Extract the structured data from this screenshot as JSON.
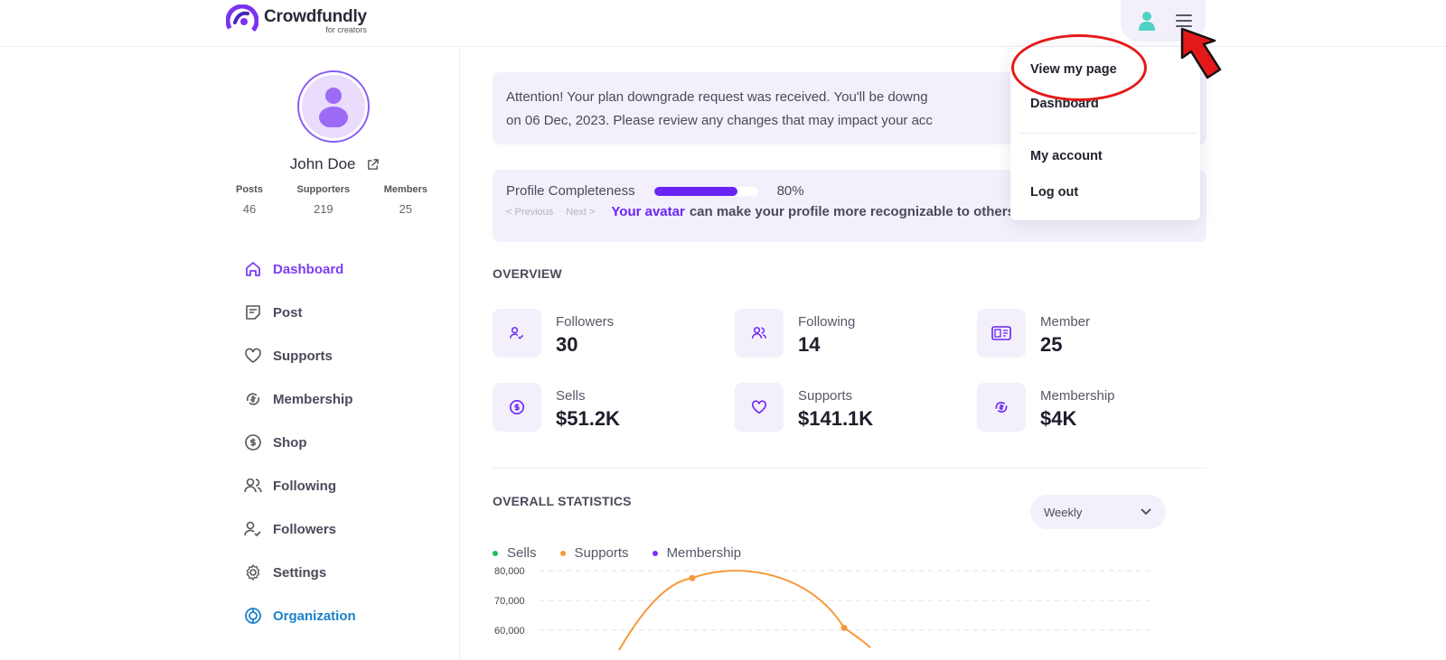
{
  "header": {
    "brand_name": "Crowdfundly",
    "brand_tagline": "for creators",
    "icons": [
      "logo-icon",
      "user-avatar-icon",
      "hamburger-menu-icon"
    ]
  },
  "user_menu": {
    "items": [
      {
        "label": "View my page"
      },
      {
        "label": "Dashboard"
      },
      {
        "label": "My account"
      },
      {
        "label": "Log out"
      }
    ]
  },
  "profile": {
    "name": "John Doe",
    "stats": [
      {
        "label": "Posts",
        "value": "46"
      },
      {
        "label": "Supporters",
        "value": "219"
      },
      {
        "label": "Members",
        "value": "25"
      }
    ]
  },
  "sidebar": {
    "items": [
      {
        "label": "Dashboard",
        "icon": "home-icon",
        "active": true
      },
      {
        "label": "Post",
        "icon": "post-icon"
      },
      {
        "label": "Supports",
        "icon": "heart-icon"
      },
      {
        "label": "Membership",
        "icon": "membership-icon"
      },
      {
        "label": "Shop",
        "icon": "dollar-icon"
      },
      {
        "label": "Following",
        "icon": "users-icon"
      },
      {
        "label": "Followers",
        "icon": "user-check-icon"
      },
      {
        "label": "Settings",
        "icon": "gear-icon"
      },
      {
        "label": "Organization",
        "icon": "organization-icon"
      }
    ]
  },
  "alert": {
    "line1": "Attention! Your plan downgrade request was received. You'll be downg",
    "line2": "on 06 Dec, 2023. Please review any changes that may impact your acc"
  },
  "completeness": {
    "label": "Profile Completeness",
    "percent": 80,
    "percent_text": "80%",
    "prev_label": "< Previous",
    "next_label": "Next >",
    "tip_link": "Your avatar",
    "tip_text": "can make your profile more recognizable to others"
  },
  "overview": {
    "title": "OVERVIEW",
    "cards": [
      {
        "label": "Followers",
        "value": "30",
        "icon": "user-check-icon"
      },
      {
        "label": "Following",
        "value": "14",
        "icon": "users-icon"
      },
      {
        "label": "Member",
        "value": "25",
        "icon": "member-card-icon"
      },
      {
        "label": "Sells",
        "value": "$51.2K",
        "icon": "dollar-icon"
      },
      {
        "label": "Supports",
        "value": "$141.1K",
        "icon": "heart-icon"
      },
      {
        "label": "Membership",
        "value": "$4K",
        "icon": "membership-icon"
      }
    ]
  },
  "statistics": {
    "title": "OVERALL STATISTICS",
    "period": "Weekly",
    "legend": [
      {
        "label": "Sells",
        "color": "#1fbf5a"
      },
      {
        "label": "Supports",
        "color": "#f59a3a"
      },
      {
        "label": "Membership",
        "color": "#7a32f0"
      }
    ]
  },
  "chart_data": {
    "type": "line",
    "y_ticks": [
      "80,000",
      "70,000",
      "60,000"
    ],
    "ylim": [
      55000,
      80000
    ],
    "grid": true,
    "series": [
      {
        "name": "Supports",
        "color": "#f59a3a",
        "visible_points": [
          77500,
          60800
        ]
      }
    ]
  },
  "colors": {
    "accent": "#6a24f6",
    "active_nav": "#7b3ff2",
    "organization": "#1b82c8",
    "panel_bg": "#f3f0fb",
    "annotation": "#e51919"
  }
}
